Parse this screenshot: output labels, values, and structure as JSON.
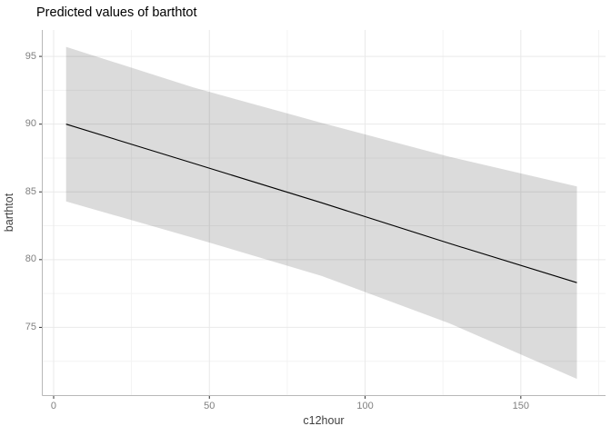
{
  "title": "Predicted values of barthtot",
  "chart_data": {
    "type": "line",
    "title": "Predicted values of barthtot",
    "xlabel": "c12hour",
    "ylabel": "barthtot",
    "grid": true,
    "legend_position": "none",
    "xlim": [
      -3.5,
      177.2
    ],
    "ylim": [
      70.0,
      96.95
    ],
    "x_ticks": [
      0,
      50,
      100,
      150
    ],
    "x_minor_ticks": [
      25,
      75,
      125,
      175
    ],
    "y_ticks": [
      95,
      90,
      85,
      80,
      75
    ],
    "y_minor_ticks": [
      92.5,
      87.5,
      82.5,
      77.5,
      72.5
    ],
    "x": [
      4,
      45,
      86,
      127,
      168
    ],
    "series": [
      {
        "name": "predicted",
        "values": [
          90.0,
          87.1,
          84.2,
          81.2,
          78.3
        ]
      },
      {
        "name": "conf_high",
        "values": [
          95.7,
          92.7,
          90.1,
          87.6,
          85.4
        ]
      },
      {
        "name": "conf_low",
        "values": [
          84.3,
          81.6,
          78.8,
          75.3,
          71.2
        ]
      }
    ],
    "colors": {
      "line": "#000000",
      "ribbon": "rgba(0,0,0,0.14)",
      "grid_major": "#e9e9e9",
      "grid_minor": "#f3f3f3",
      "axis_line": "#b8b8b8",
      "tick_mark": "#333333",
      "tick_label": "#808080",
      "axis_title": "#3f3f3f",
      "title": "#000000",
      "background": "#ffffff"
    }
  }
}
